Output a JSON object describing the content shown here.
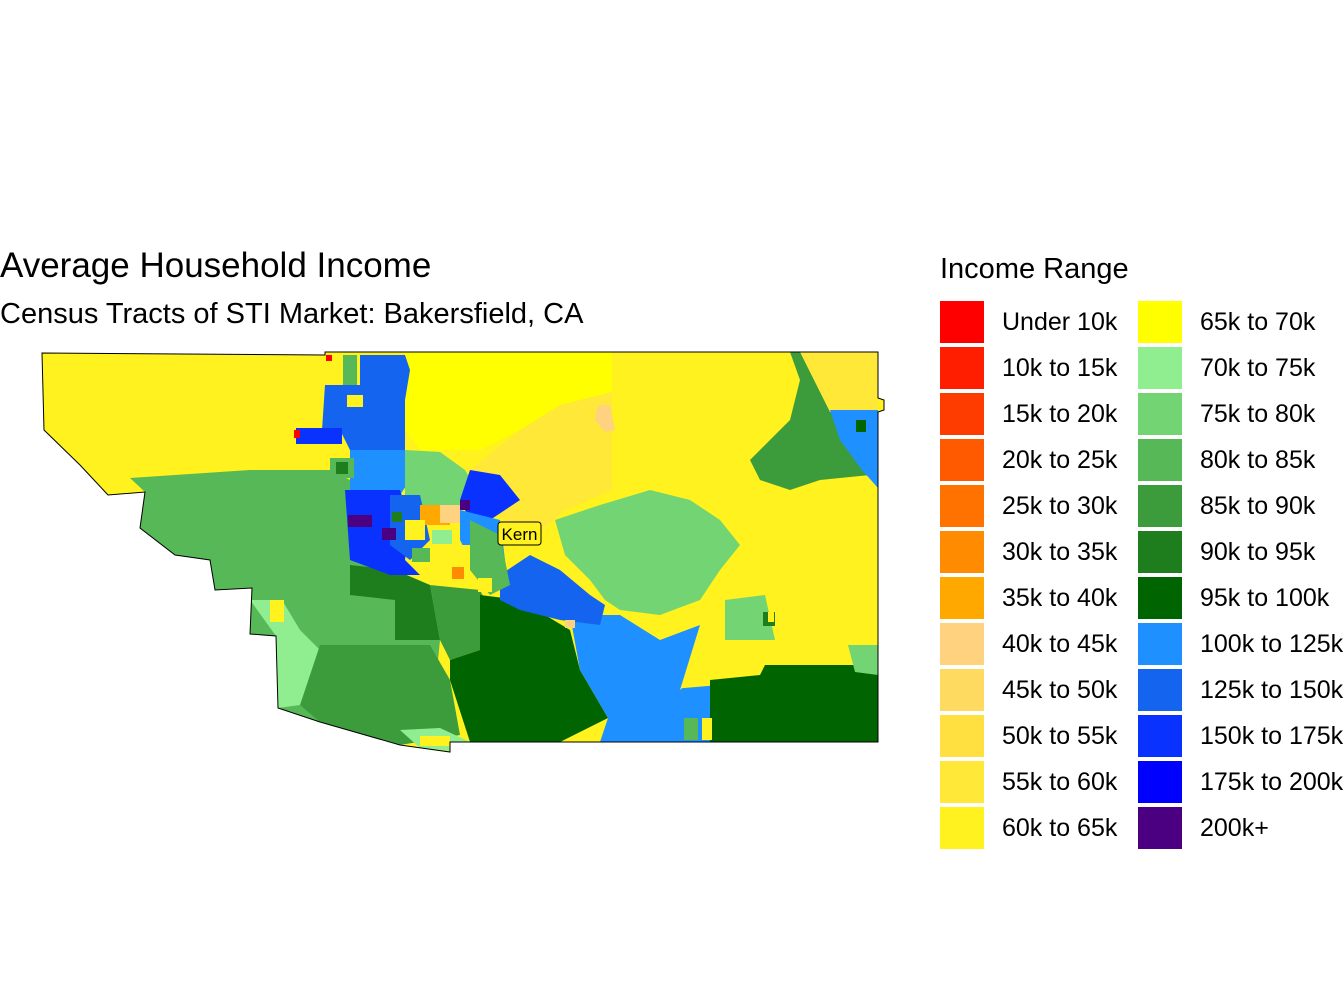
{
  "title": "Average Household Income",
  "subtitle": "Census Tracts of STI Market: Bakersfield, CA",
  "map_labels": {
    "county": "Kern"
  },
  "legend": {
    "title": "Income Range",
    "items": [
      {
        "label": "Under 10k",
        "color": "#FF0000"
      },
      {
        "label": "10k to 15k",
        "color": "#FF1E00"
      },
      {
        "label": "15k to 20k",
        "color": "#FF3C00"
      },
      {
        "label": "20k to 25k",
        "color": "#FF5A00"
      },
      {
        "label": "25k to 30k",
        "color": "#FF7200"
      },
      {
        "label": "30k to 35k",
        "color": "#FF8C00"
      },
      {
        "label": "35k to 40k",
        "color": "#FFA800"
      },
      {
        "label": "40k to 45k",
        "color": "#FFD27F"
      },
      {
        "label": "45k to 50k",
        "color": "#FFDA60"
      },
      {
        "label": "50k to 55k",
        "color": "#FFE040"
      },
      {
        "label": "55k to 60k",
        "color": "#FFE838"
      },
      {
        "label": "60k to 65k",
        "color": "#FFF21E"
      },
      {
        "label": "65k to 70k",
        "color": "#FFFF00"
      },
      {
        "label": "70k to 75k",
        "color": "#90EE90"
      },
      {
        "label": "75k to 80k",
        "color": "#72D472"
      },
      {
        "label": "80k to 85k",
        "color": "#56B856"
      },
      {
        "label": "85k to 90k",
        "color": "#3C9C3C"
      },
      {
        "label": "90k to 95k",
        "color": "#1E7E1E"
      },
      {
        "label": "95k to 100k",
        "color": "#006400"
      },
      {
        "label": "100k to 125k",
        "color": "#1E90FF"
      },
      {
        "label": "125k to 150k",
        "color": "#1464F0"
      },
      {
        "label": "150k to 175k",
        "color": "#0A32FF"
      },
      {
        "label": "175k to 200k",
        "color": "#0000FF"
      },
      {
        "label": "200k+",
        "color": "#4B0082"
      }
    ]
  }
}
